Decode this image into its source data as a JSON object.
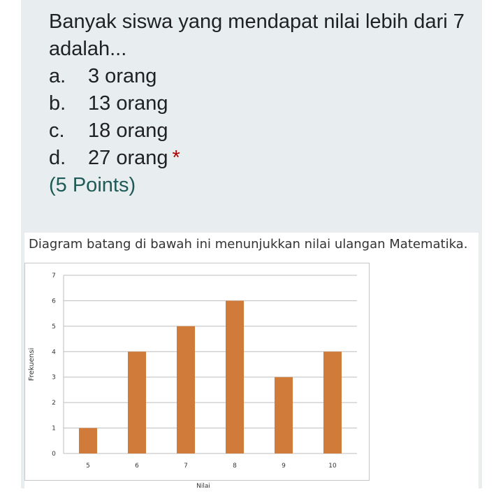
{
  "question": {
    "title": "Banyak siswa yang mendapat nilai lebih dari 7 adalah...",
    "options": [
      {
        "letter": "a.",
        "label": "3 orang"
      },
      {
        "letter": "b.",
        "label": "13 orang"
      },
      {
        "letter": "c.",
        "label": "18 orang"
      },
      {
        "letter": "d.",
        "label": "27 orang"
      }
    ],
    "required_mark": "*",
    "points": "(5 Points)"
  },
  "image": {
    "caption": "Diagram batang di bawah ini menunjukkan nilai ulangan Matematika."
  },
  "colors": {
    "card_bg": "#e8eef0",
    "bar": "#d07b3a",
    "points_text": "#1e5b56",
    "required": "#b00000"
  },
  "chart_data": {
    "type": "bar",
    "categories": [
      "5",
      "6",
      "7",
      "8",
      "9",
      "10"
    ],
    "values": [
      1,
      4,
      5,
      6,
      3,
      4
    ],
    "ylabel": "Frekuensi",
    "xlabel": "Nilai",
    "ylim": [
      0,
      7
    ],
    "yticks": [
      0,
      1,
      2,
      3,
      4,
      5,
      6,
      7
    ],
    "grid": true,
    "legend": "none"
  }
}
